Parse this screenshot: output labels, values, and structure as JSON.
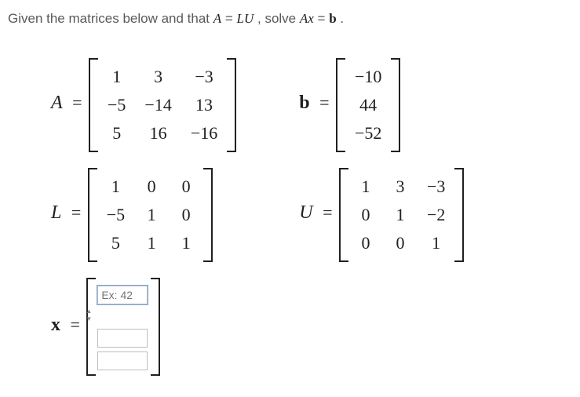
{
  "prompt": {
    "t1": "Given the matrices below and that ",
    "A": "A",
    "eq1": " = ",
    "LU": "LU",
    "t2": ", solve ",
    "Ax": "Ax",
    "eq2": " = ",
    "b": "b",
    "t3": "."
  },
  "labels": {
    "A": "A",
    "b": "b",
    "L": "L",
    "U": "U",
    "x": "x",
    "eq": "="
  },
  "A": {
    "cols": 3,
    "cells": [
      "1",
      "3",
      "−3",
      "−5",
      "−14",
      "13",
      "5",
      "16",
      "−16"
    ]
  },
  "b": {
    "cols": 1,
    "cells": [
      "−10",
      "44",
      "−52"
    ]
  },
  "L": {
    "cols": 3,
    "cells": [
      "1",
      "0",
      "0",
      "−5",
      "1",
      "0",
      "5",
      "1",
      "1"
    ]
  },
  "U": {
    "cols": 3,
    "cells": [
      "1",
      "3",
      "−3",
      "0",
      "1",
      "−2",
      "0",
      "0",
      "1"
    ]
  },
  "x": {
    "placeholder": "Ex: 42",
    "v1": "",
    "v2": "",
    "v3": ""
  }
}
